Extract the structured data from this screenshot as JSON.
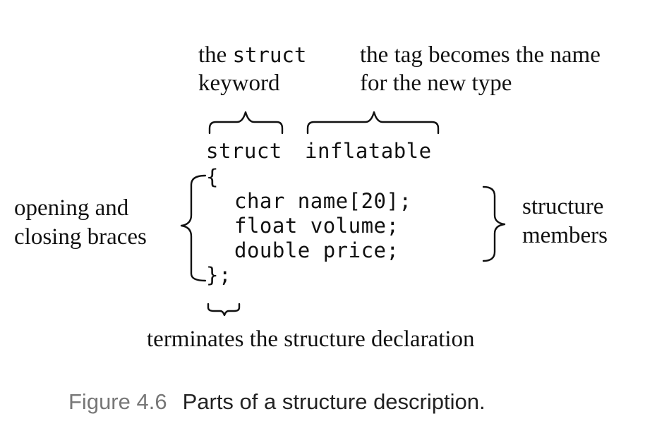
{
  "annotations": {
    "keyword_line1_prefix": "the ",
    "keyword_line1_code": "struct",
    "keyword_line2": "keyword",
    "tag_line1": "the tag becomes the name",
    "tag_line2": "for the new type",
    "braces_line1": "opening and",
    "braces_line2": "closing braces",
    "members_line1": "structure",
    "members_line2": "members",
    "terminator": "terminates the structure declaration"
  },
  "code": {
    "keyword": "struct",
    "tag": "inflatable",
    "open_brace": "{",
    "members": [
      "char name[20];",
      "float volume;",
      "double price;"
    ],
    "close": "};"
  },
  "caption": {
    "number": "Figure 4.6",
    "text": "Parts of a structure description."
  }
}
